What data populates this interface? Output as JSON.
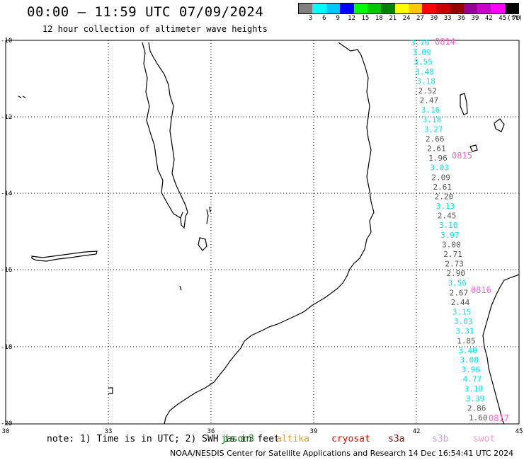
{
  "header": {
    "title": "00:00 – 11:59 UTC 07/09/2024",
    "subtitle": "12 hour collection of altimeter wave heights"
  },
  "colorbar": {
    "colors": [
      "#808080",
      "#00ffff",
      "#00c8ff",
      "#0000ff",
      "#00ff00",
      "#00c800",
      "#008000",
      "#ffff00",
      "#ffc800",
      "#ff0000",
      "#c80000",
      "#960000",
      "#960096",
      "#c800c8",
      "#ff00ff",
      "#000000"
    ],
    "labels": [
      "3",
      "6",
      "9",
      "12",
      "15",
      "18",
      "21",
      "24",
      "27",
      "30",
      "33",
      "36",
      "39",
      "42",
      "45",
      "70",
      "(ft)"
    ]
  },
  "axes": {
    "lat_labels": [
      "-10",
      "-12",
      "-14",
      "-16",
      "-18",
      "-20"
    ],
    "lon_labels": [
      "30",
      "33",
      "36",
      "39",
      "42",
      "45"
    ]
  },
  "tracks": [
    {
      "values": [
        "3.76",
        "3.09",
        "3.55",
        "3.48",
        "3.18",
        "2.52",
        "2.47",
        "3.16",
        "3.18",
        "3.27",
        "2.66",
        "2.61",
        "1.96",
        "3.03",
        "2.09",
        "2.61",
        "2.20",
        "3.13",
        "2.45",
        "3.10",
        "3.97",
        "3.00",
        "2.71",
        "2.73",
        "2.90",
        "3.56",
        "2.67",
        "2.44",
        "3.15",
        "3.03",
        "3.31",
        "1.85",
        "3.40",
        "3.08",
        "3.96",
        "4.77",
        "3.10",
        "3.39",
        "2.86",
        "1.60"
      ],
      "colors": [
        "c",
        "c",
        "c",
        "c",
        "c",
        "g",
        "g",
        "c",
        "c",
        "c",
        "g",
        "g",
        "g",
        "c",
        "g",
        "g",
        "g",
        "c",
        "g",
        "c",
        "c",
        "g",
        "g",
        "g",
        "g",
        "c",
        "g",
        "g",
        "c",
        "c",
        "c",
        "g",
        "c",
        "c",
        "c",
        "c",
        "c",
        "c",
        "g",
        "g"
      ]
    }
  ],
  "pass_times": [
    "0814",
    "0815",
    "0816",
    "0817"
  ],
  "legend": {
    "note": "note: 1) Time is in UTC; 2) SWH is in feet",
    "satellites": [
      {
        "name": "jason3",
        "color": "#008000"
      },
      {
        "name": "altika",
        "color": "#ff9900"
      },
      {
        "name": "cryosat",
        "color": "#ff0000"
      },
      {
        "name": "s3a",
        "color": "#990000"
      },
      {
        "name": "s3b",
        "color": "#c8a0f0"
      },
      {
        "name": "swot",
        "color": "#ff99cc"
      }
    ]
  },
  "footer": "NOAA/NESDIS Center for Satellite Applications and Research    14 Dec 16:54:41 UTC 2024"
}
